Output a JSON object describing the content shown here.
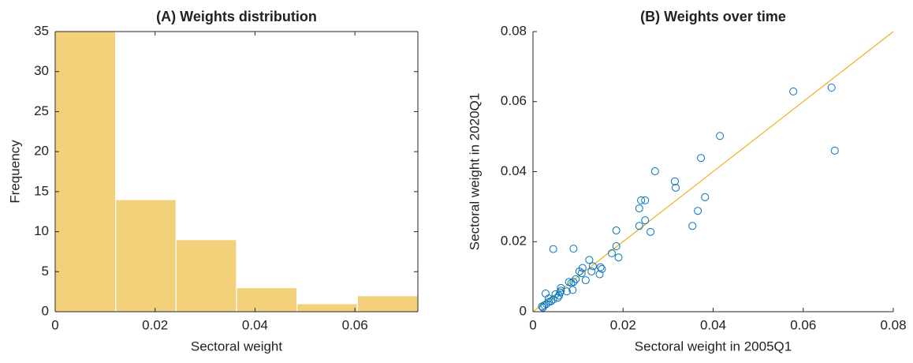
{
  "chart_data": [
    {
      "type": "histogram",
      "title": "(A) Weights distribution",
      "x_label": "Sectoral weight",
      "y_label": "Frequency",
      "bins": [
        0,
        0.0121,
        0.0242,
        0.0363,
        0.0484,
        0.0605,
        0.0726
      ],
      "values": [
        35,
        14,
        9,
        3,
        1,
        2
      ],
      "color": "#f3d07a",
      "xlim": [
        0,
        0.0726
      ],
      "xticks": [
        0,
        0.02,
        0.04,
        0.06
      ],
      "ylim": [
        0,
        35
      ],
      "yticks": [
        0,
        5,
        10,
        15,
        20,
        25,
        30,
        35
      ],
      "box": true
    },
    {
      "type": "scatter",
      "title": "(B) Weights over time",
      "x_label": "Sectoral weight in 2005Q1",
      "y_label": "Sectoral weight in 2020Q1",
      "xlim": [
        0,
        0.08
      ],
      "xticks": [
        0,
        0.02,
        0.04,
        0.06,
        0.08
      ],
      "ylim": [
        0,
        0.08
      ],
      "yticks": [
        0,
        0.02,
        0.04,
        0.06,
        0.08
      ],
      "box": false,
      "color": "#0072bd",
      "x": [
        0.0578,
        0.0663,
        0.067,
        0.0415,
        0.0373,
        0.0382,
        0.0366,
        0.0315,
        0.0317,
        0.0354,
        0.0271,
        0.0236,
        0.024,
        0.0249,
        0.0249,
        0.0261,
        0.0236,
        0.0185,
        0.0185,
        0.019,
        0.0175,
        0.0045,
        0.009,
        0.0125,
        0.015,
        0.0153,
        0.0148,
        0.013,
        0.0133,
        0.0117,
        0.0108,
        0.011,
        0.0103,
        0.0095,
        0.009,
        0.0085,
        0.008,
        0.0088,
        0.0075,
        0.0062,
        0.006,
        0.0058,
        0.005,
        0.0055,
        0.0045,
        0.004,
        0.0035,
        0.003,
        0.0025,
        0.002,
        0.0022,
        0.0028,
        0.0035,
        0.0062
      ],
      "y": [
        0.0629,
        0.064,
        0.046,
        0.0502,
        0.0439,
        0.0327,
        0.0288,
        0.0372,
        0.0354,
        0.0245,
        0.0401,
        0.0295,
        0.0318,
        0.0318,
        0.0261,
        0.0228,
        0.0245,
        0.0232,
        0.0187,
        0.0155,
        0.0167,
        0.0179,
        0.018,
        0.0148,
        0.0127,
        0.0122,
        0.0107,
        0.0115,
        0.013,
        0.009,
        0.011,
        0.0125,
        0.0115,
        0.0093,
        0.0085,
        0.0082,
        0.0085,
        0.0062,
        0.0058,
        0.0068,
        0.0055,
        0.0046,
        0.005,
        0.004,
        0.0035,
        0.003,
        0.0028,
        0.0022,
        0.0018,
        0.0015,
        0.0012,
        0.0052,
        0.0038,
        0.006
      ],
      "reference_line": {
        "x": [
          0,
          0.08
        ],
        "y": [
          0,
          0.08
        ],
        "color": "#edb120"
      }
    }
  ]
}
